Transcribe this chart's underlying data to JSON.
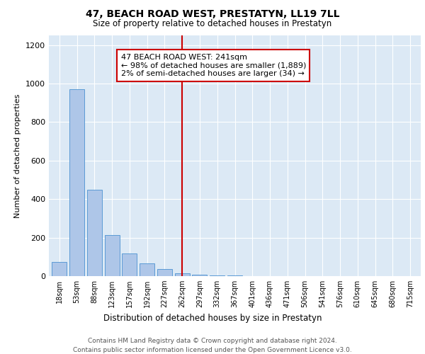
{
  "title": "47, BEACH ROAD WEST, PRESTATYN, LL19 7LL",
  "subtitle": "Size of property relative to detached houses in Prestatyn",
  "xlabel": "Distribution of detached houses by size in Prestatyn",
  "ylabel": "Number of detached properties",
  "bar_color": "#aec6e8",
  "bar_edge_color": "#5b9bd5",
  "annotation_line_color": "#cc0000",
  "annotation_box_edge": "#cc0000",
  "annotation_line1": "47 BEACH ROAD WEST: 241sqm",
  "annotation_line2": "← 98% of detached houses are smaller (1,889)",
  "annotation_line3": "2% of semi-detached houses are larger (34) →",
  "footer_line1": "Contains HM Land Registry data © Crown copyright and database right 2024.",
  "footer_line2": "Contains public sector information licensed under the Open Government Licence v3.0.",
  "categories": [
    "18sqm",
    "53sqm",
    "88sqm",
    "123sqm",
    "157sqm",
    "192sqm",
    "227sqm",
    "262sqm",
    "297sqm",
    "332sqm",
    "367sqm",
    "401sqm",
    "436sqm",
    "471sqm",
    "506sqm",
    "541sqm",
    "576sqm",
    "610sqm",
    "645sqm",
    "680sqm",
    "715sqm"
  ],
  "values": [
    75,
    970,
    450,
    215,
    118,
    68,
    35,
    13,
    8,
    4,
    2,
    1,
    0,
    0,
    0,
    0,
    0,
    0,
    0,
    0,
    0
  ],
  "highlight_index": 7,
  "highlight_color": "#cc0000",
  "ylim": [
    0,
    1250
  ],
  "yticks": [
    0,
    200,
    400,
    600,
    800,
    1000,
    1200
  ],
  "plot_background": "#dce9f5"
}
